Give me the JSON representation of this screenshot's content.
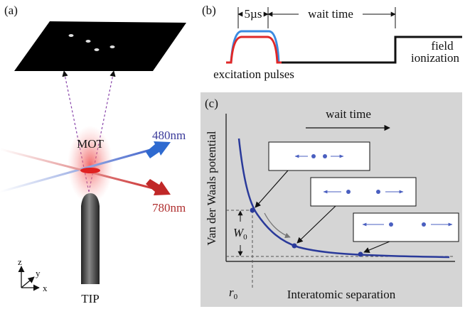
{
  "panel_a": {
    "label": "(a)",
    "mot": "MOT",
    "beam_blue": "480nm",
    "beam_red": "780nm",
    "tip": "TIP",
    "axes": {
      "z": "z",
      "y": "y",
      "x": "x"
    }
  },
  "panel_b": {
    "label": "(b)",
    "pulse_width": "5µs",
    "wait": "wait time",
    "field": [
      "field",
      "ionization"
    ],
    "excitation": "excitation pulses"
  },
  "panel_c": {
    "label": "(c)",
    "wait": "wait time",
    "y_axis": "Van der Waals potential",
    "x_axis": "Interatomic separation",
    "w": {
      "symbol": "W",
      "subscript": "0"
    },
    "r": {
      "symbol": "r",
      "subscript": "0"
    }
  }
}
